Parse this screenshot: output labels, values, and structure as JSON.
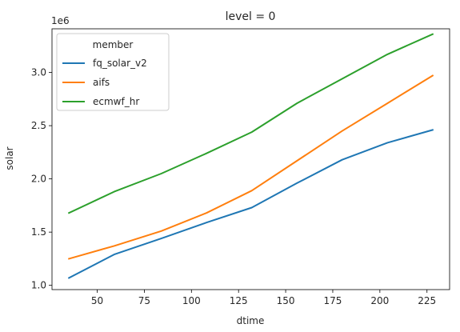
{
  "chart_data": {
    "type": "line",
    "title": "level = 0",
    "xlabel": "dtime",
    "ylabel": "solar",
    "offset_label": "1e6",
    "xlim": [
      26,
      237
    ],
    "ylim": [
      0.96,
      3.41
    ],
    "x_ticks": [
      50,
      75,
      100,
      125,
      150,
      175,
      200,
      225
    ],
    "y_ticks": [
      1.0,
      1.5,
      2.0,
      2.5,
      3.0
    ],
    "grid": false,
    "legend": {
      "title": "member",
      "placement": "top-left"
    },
    "series": [
      {
        "name": "fq_solar_v2",
        "color": "#1f77b4",
        "x": [
          35,
          59,
          84,
          108,
          132,
          156,
          180,
          204,
          228
        ],
        "y": [
          1.07,
          1.29,
          1.44,
          1.59,
          1.73,
          1.96,
          2.18,
          2.34,
          2.46
        ]
      },
      {
        "name": "aifs",
        "color": "#ff7f0e",
        "x": [
          35,
          59,
          84,
          108,
          132,
          156,
          180,
          204,
          228
        ],
        "y": [
          1.25,
          1.37,
          1.51,
          1.68,
          1.89,
          2.17,
          2.45,
          2.71,
          2.97
        ]
      },
      {
        "name": "ecmwf_hr",
        "color": "#2ca02c",
        "x": [
          35,
          59,
          84,
          108,
          132,
          156,
          180,
          204,
          228
        ],
        "y": [
          1.68,
          1.88,
          2.05,
          2.24,
          2.44,
          2.71,
          2.94,
          3.17,
          3.36
        ]
      }
    ]
  }
}
